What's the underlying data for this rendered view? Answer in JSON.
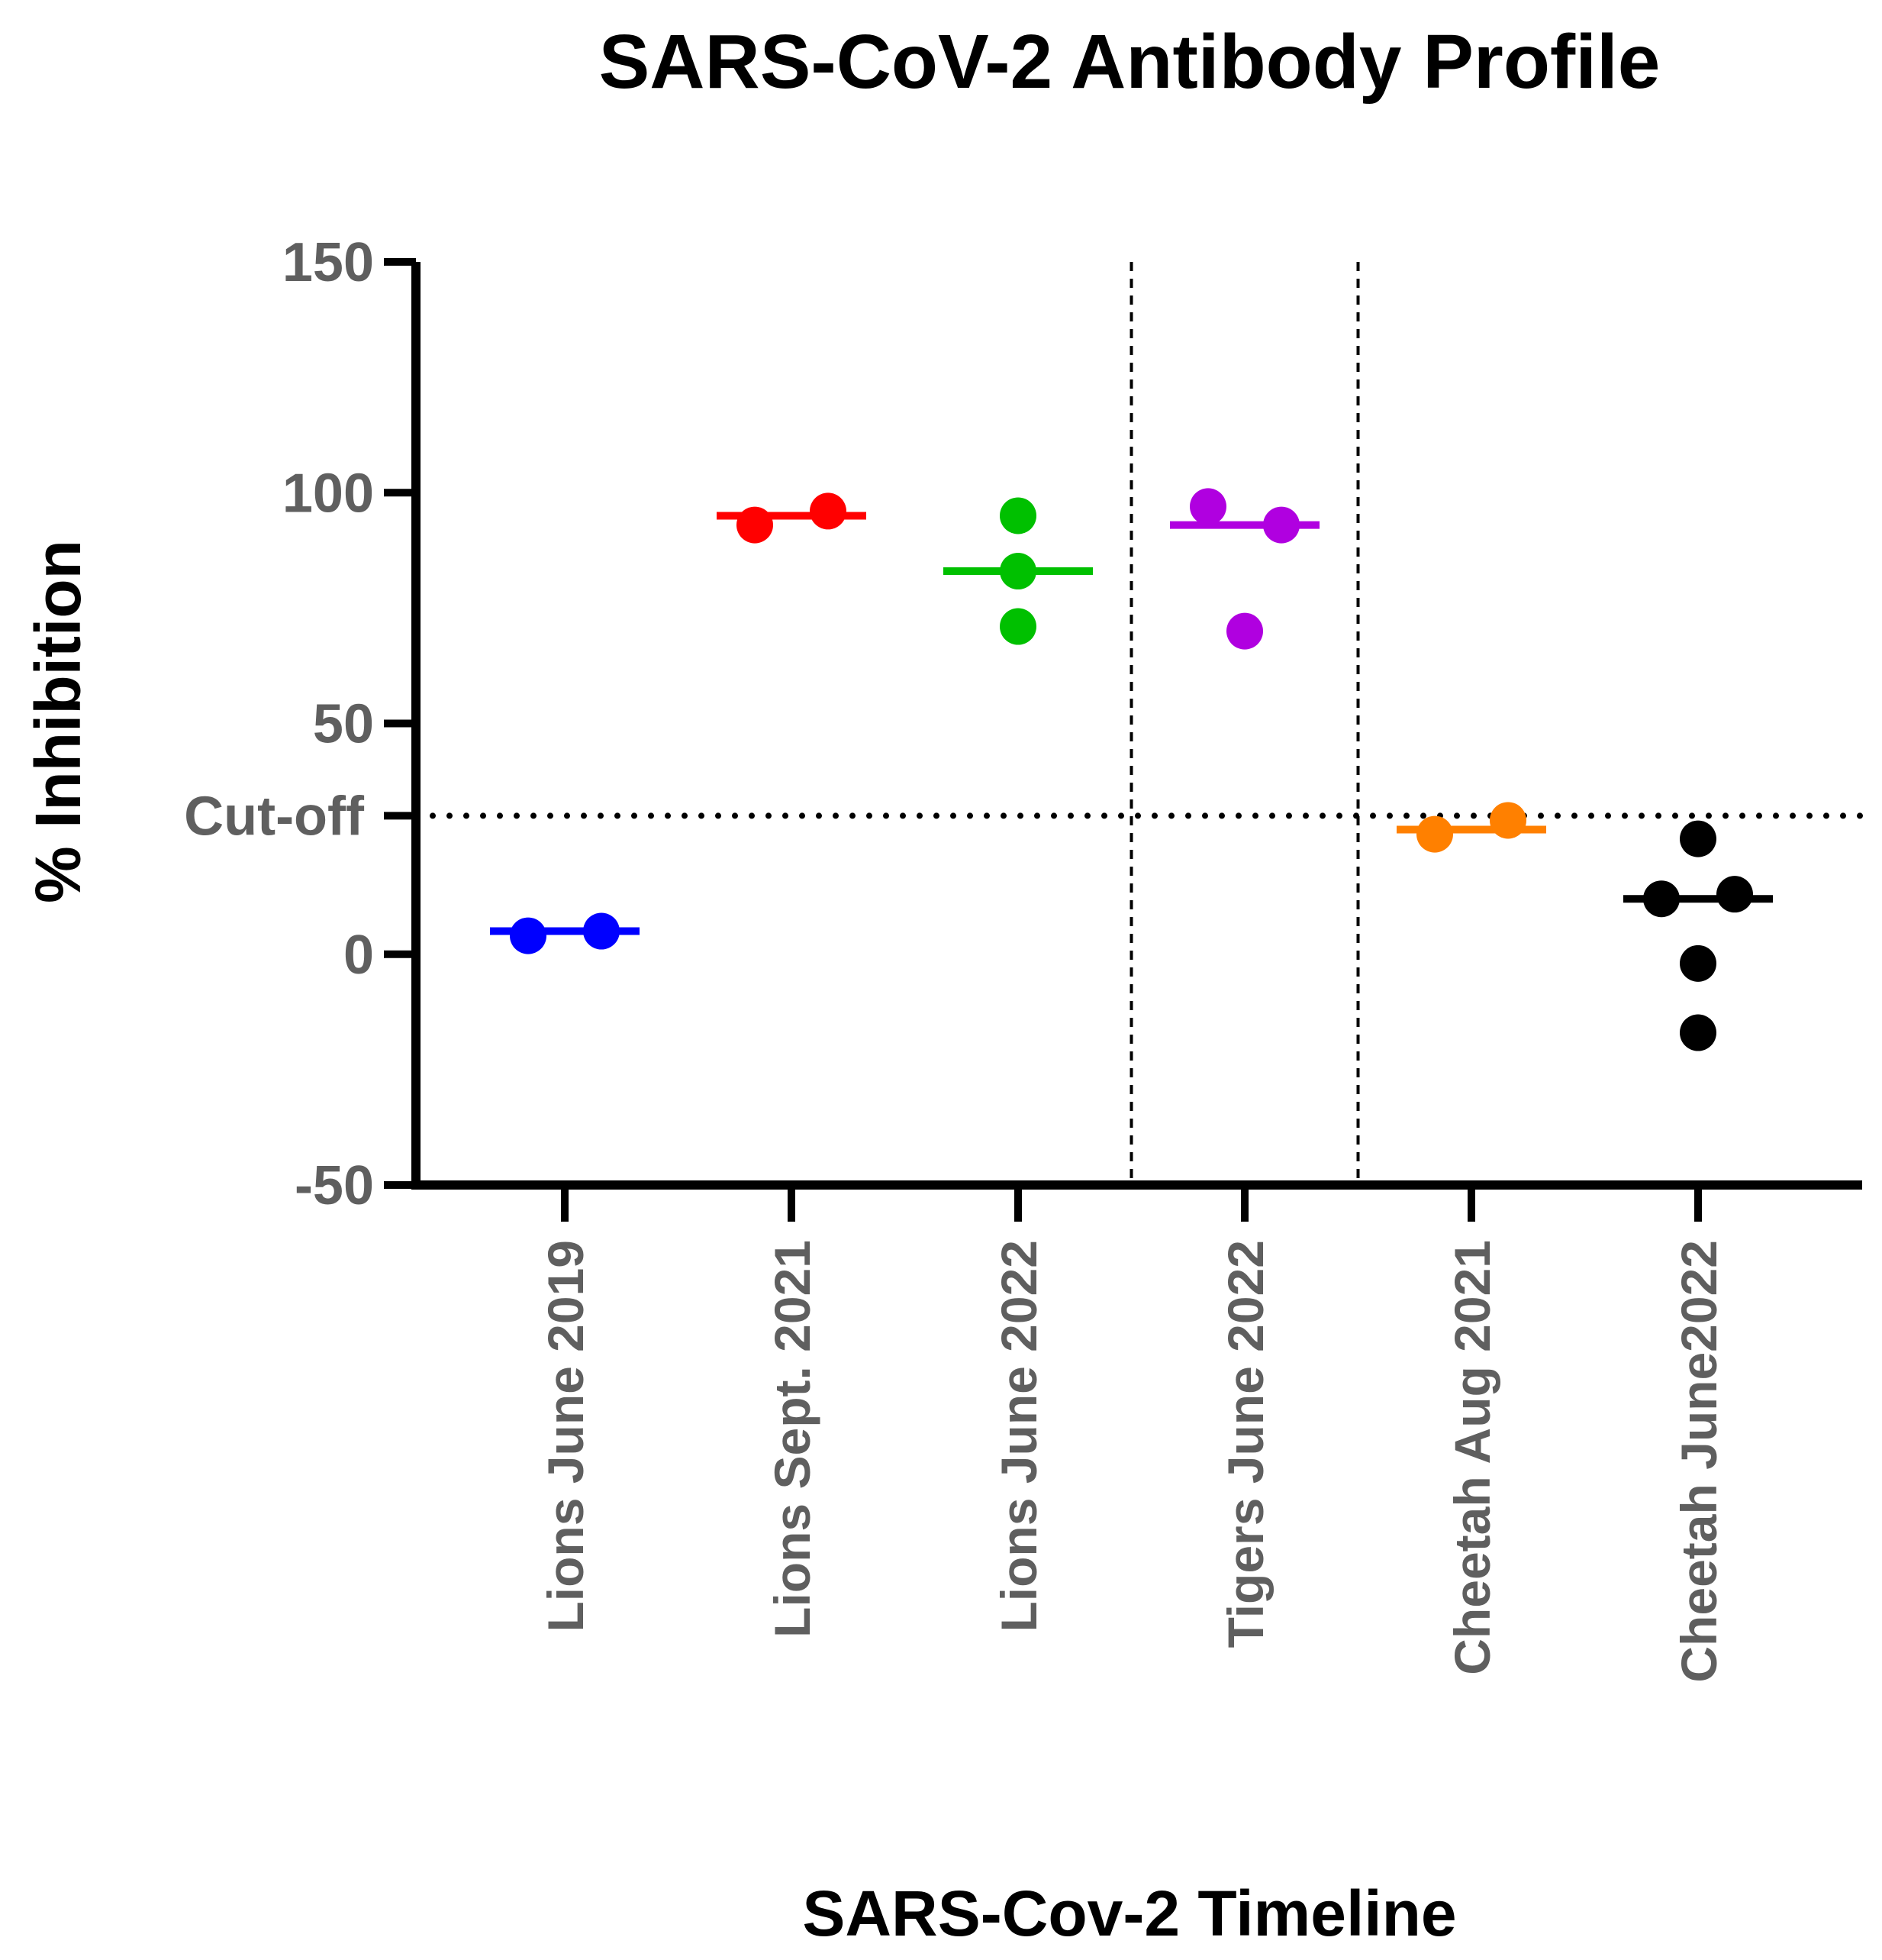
{
  "chart_data": {
    "type": "scatter",
    "title": "SARS-CoV-2 Antibody Profile",
    "xlabel": "SARS-Cov-2 Timeline",
    "ylabel": "% Inhibition",
    "ylim": [
      -50,
      150
    ],
    "yticks": [
      -50,
      0,
      50,
      100,
      150
    ],
    "cutoff": {
      "label": "Cut-off",
      "value": 30
    },
    "group_separators_after": [
      3,
      4
    ],
    "categories": [
      "Lions June 2019",
      "Lions Sept. 2021",
      "Lions June 2022",
      "Tigers June 2022",
      "Cheetah Aug 2021",
      "Cheetah June2022"
    ],
    "series": [
      {
        "name": "Lions June 2019",
        "color": "#0000ff",
        "median": 5,
        "values": [
          4,
          5
        ]
      },
      {
        "name": "Lions Sept. 2021",
        "color": "#ff0000",
        "median": 95,
        "values": [
          93,
          96
        ]
      },
      {
        "name": "Lions June 2022",
        "color": "#00c000",
        "median": 83,
        "values": [
          95,
          83,
          71
        ]
      },
      {
        "name": "Tigers June 2022",
        "color": "#b000e0",
        "median": 93,
        "values": [
          97,
          93,
          70
        ]
      },
      {
        "name": "Cheetah Aug 2021",
        "color": "#ff8000",
        "median": 27,
        "values": [
          26,
          29
        ]
      },
      {
        "name": "Cheetah June2022",
        "color": "#000000",
        "median": 12,
        "values": [
          25,
          12,
          13,
          -2,
          -17
        ]
      }
    ]
  }
}
